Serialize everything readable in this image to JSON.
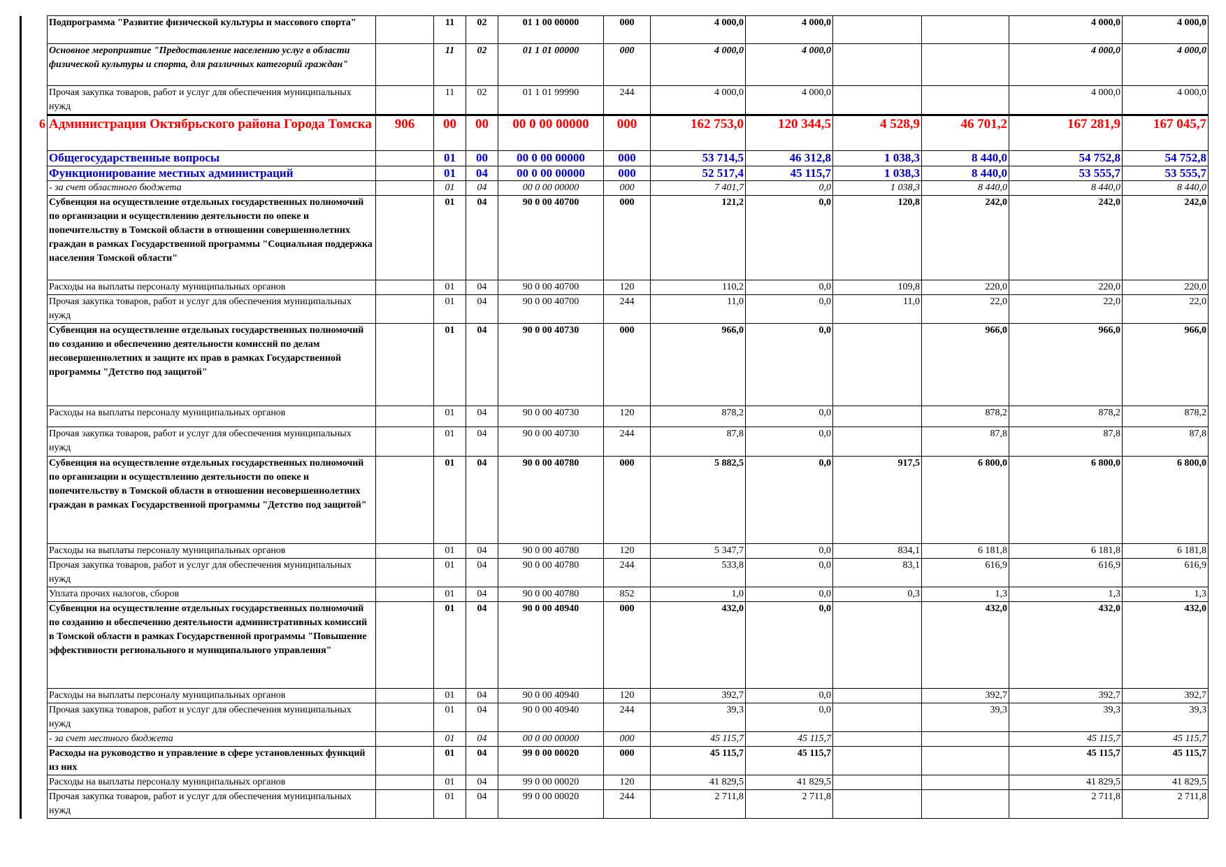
{
  "rows": [
    {
      "num": "",
      "name": "Подпрограмма \"Развитие физической культуры и массового спорта\"",
      "grbs": "",
      "rz": "11",
      "pr": "02",
      "csr": "01 1 00 00000",
      "vr": "000",
      "v1": "4 000,0",
      "v2": "4 000,0",
      "v3": "",
      "v4": "",
      "v5": "4 000,0",
      "v6": "4 000,0"
    },
    {
      "num": "",
      "name": "Основное мероприятие \"Предоставление населению услуг в области физической культуры и спорта, для различных категорий граждан\"",
      "grbs": "",
      "rz": "11",
      "pr": "02",
      "csr": "01 1 01 00000",
      "vr": "000",
      "v1": "4 000,0",
      "v2": "4 000,0",
      "v3": "",
      "v4": "",
      "v5": "4 000,0",
      "v6": "4 000,0"
    },
    {
      "num": "",
      "name": "Прочая закупка товаров, работ и услуг для обеспечения муниципальных нужд",
      "grbs": "",
      "rz": "11",
      "pr": "02",
      "csr": "01 1 01 99990",
      "vr": "244",
      "v1": "4 000,0",
      "v2": "4 000,0",
      "v3": "",
      "v4": "",
      "v5": "4 000,0",
      "v6": "4 000,0"
    },
    {
      "num": "6",
      "name": "Администрация Октябрьского района Города Томска",
      "grbs": "906",
      "rz": "00",
      "pr": "00",
      "csr": "00 0 00 00000",
      "vr": "000",
      "v1": "162 753,0",
      "v2": "120 344,5",
      "v3": "4 528,9",
      "v4": "46 701,2",
      "v5": "167 281,9",
      "v6": "167 045,7"
    },
    {
      "num": "",
      "name": "Общегосударственные вопросы",
      "grbs": "",
      "rz": "01",
      "pr": "00",
      "csr": "00 0 00 00000",
      "vr": "000",
      "v1": "53 714,5",
      "v2": "46 312,8",
      "v3": "1 038,3",
      "v4": "8 440,0",
      "v5": "54 752,8",
      "v6": "54 752,8"
    },
    {
      "num": "",
      "name": "Функционирование местных администраций",
      "grbs": "",
      "rz": "01",
      "pr": "04",
      "csr": "00 0 00 00000",
      "vr": "000",
      "v1": "52 517,4",
      "v2": "45 115,7",
      "v3": "1 038,3",
      "v4": "8 440,0",
      "v5": "53 555,7",
      "v6": "53 555,7"
    },
    {
      "num": "",
      "name": " - за счет областного бюджета",
      "grbs": "",
      "rz": "01",
      "pr": "04",
      "csr": "00 0 00 00000",
      "vr": "000",
      "v1": "7 401,7",
      "v2": "0,0",
      "v3": "1 038,3",
      "v4": "8 440,0",
      "v5": "8 440,0",
      "v6": "8 440,0"
    },
    {
      "num": "",
      "name": "Субвенция на осуществление отдельных государственных полномочий по организации и осуществлению деятельности по опеке и попечительству в Томской области в отношении совершеннолетних граждан в рамках Государственной программы \"Социальная поддержка населения Томской области\"",
      "grbs": "",
      "rz": "01",
      "pr": "04",
      "csr": "90 0 00 40700",
      "vr": "000",
      "v1": "121,2",
      "v2": "0,0",
      "v3": "120,8",
      "v4": "242,0",
      "v5": "242,0",
      "v6": "242,0"
    },
    {
      "num": "",
      "name": "Расходы на выплаты персоналу муниципальных органов",
      "grbs": "",
      "rz": "01",
      "pr": "04",
      "csr": "90 0 00 40700",
      "vr": "120",
      "v1": "110,2",
      "v2": "0,0",
      "v3": "109,8",
      "v4": "220,0",
      "v5": "220,0",
      "v6": "220,0"
    },
    {
      "num": "",
      "name": "Прочая закупка товаров, работ и услуг для обеспечения муниципальных нужд",
      "grbs": "",
      "rz": "01",
      "pr": "04",
      "csr": "90 0 00 40700",
      "vr": "244",
      "v1": "11,0",
      "v2": "0,0",
      "v3": "11,0",
      "v4": "22,0",
      "v5": "22,0",
      "v6": "22,0"
    },
    {
      "num": "",
      "name": "Субвенция на осуществление отдельных государственных полномочий по созданию и обеспечению деятельности комиссий по делам несовершеннолетних и защите их прав в рамках Государственной программы \"Детство под защитой\"",
      "grbs": "",
      "rz": "01",
      "pr": "04",
      "csr": "90 0 00 40730",
      "vr": "000",
      "v1": "966,0",
      "v2": "0,0",
      "v3": "",
      "v4": "966,0",
      "v5": "966,0",
      "v6": "966,0"
    },
    {
      "num": "",
      "name": "Расходы на выплаты персоналу муниципальных органов",
      "grbs": "",
      "rz": "01",
      "pr": "04",
      "csr": "90 0 00 40730",
      "vr": "120",
      "v1": "878,2",
      "v2": "0,0",
      "v3": "",
      "v4": "878,2",
      "v5": "878,2",
      "v6": "878,2"
    },
    {
      "num": "",
      "name": "Прочая закупка товаров, работ и услуг для обеспечения муниципальных нужд",
      "grbs": "",
      "rz": "01",
      "pr": "04",
      "csr": "90 0 00 40730",
      "vr": "244",
      "v1": "87,8",
      "v2": "0,0",
      "v3": "",
      "v4": "87,8",
      "v5": "87,8",
      "v6": "87,8"
    },
    {
      "num": "",
      "name": "Субвенция на осуществление отдельных государственных полномочий по организации и осуществлению деятельности по опеке и попечительству в Томской области в отношении несовершеннолетних граждан в рамках Государственной программы \"Детство под защитой\"",
      "grbs": "",
      "rz": "01",
      "pr": "04",
      "csr": "90 0 00 40780",
      "vr": "000",
      "v1": "5 882,5",
      "v2": "0,0",
      "v3": "917,5",
      "v4": "6 800,0",
      "v5": "6 800,0",
      "v6": "6 800,0"
    },
    {
      "num": "",
      "name": "Расходы на выплаты персоналу муниципальных органов",
      "grbs": "",
      "rz": "01",
      "pr": "04",
      "csr": "90 0 00 40780",
      "vr": "120",
      "v1": "5 347,7",
      "v2": "0,0",
      "v3": "834,1",
      "v4": "6 181,8",
      "v5": "6 181,8",
      "v6": "6 181,8"
    },
    {
      "num": "",
      "name": "Прочая закупка товаров, работ и услуг для обеспечения муниципальных нужд",
      "grbs": "",
      "rz": "01",
      "pr": "04",
      "csr": "90 0 00 40780",
      "vr": "244",
      "v1": "533,8",
      "v2": "0,0",
      "v3": "83,1",
      "v4": "616,9",
      "v5": "616,9",
      "v6": "616,9"
    },
    {
      "num": "",
      "name": "Уплата прочих налогов, сборов",
      "grbs": "",
      "rz": "01",
      "pr": "04",
      "csr": "90 0 00 40780",
      "vr": "852",
      "v1": "1,0",
      "v2": "0,0",
      "v3": "0,3",
      "v4": "1,3",
      "v5": "1,3",
      "v6": "1,3"
    },
    {
      "num": "",
      "name": "Субвенция на осуществление отдельных государственных полномочий по созданию и обеспечению деятельности административных комиссий в Томской области в рамках Государственной программы \"Повышение эффективности регионального и муниципального управления\"",
      "grbs": "",
      "rz": "01",
      "pr": "04",
      "csr": "90 0 00 40940",
      "vr": "000",
      "v1": "432,0",
      "v2": "0,0",
      "v3": "",
      "v4": "432,0",
      "v5": "432,0",
      "v6": "432,0"
    },
    {
      "num": "",
      "name": "Расходы на выплаты персоналу муниципальных органов",
      "grbs": "",
      "rz": "01",
      "pr": "04",
      "csr": "90 0 00 40940",
      "vr": "120",
      "v1": "392,7",
      "v2": "0,0",
      "v3": "",
      "v4": "392,7",
      "v5": "392,7",
      "v6": "392,7"
    },
    {
      "num": "",
      "name": "Прочая закупка товаров, работ и услуг для обеспечения муниципальных нужд",
      "grbs": "",
      "rz": "01",
      "pr": "04",
      "csr": "90 0 00 40940",
      "vr": "244",
      "v1": "39,3",
      "v2": "0,0",
      "v3": "",
      "v4": "39,3",
      "v5": "39,3",
      "v6": "39,3"
    },
    {
      "num": "",
      "name": " - за счет местного бюджета",
      "grbs": "",
      "rz": "01",
      "pr": "04",
      "csr": "00 0 00 00000",
      "vr": "000",
      "v1": "45 115,7",
      "v2": "45 115,7",
      "v3": "",
      "v4": "",
      "v5": "45 115,7",
      "v6": "45 115,7"
    },
    {
      "num": "",
      "name": "Расходы на руководство и управление в сфере установленных функций из них",
      "grbs": "",
      "rz": "01",
      "pr": "04",
      "csr": "99 0 00 00020",
      "vr": "000",
      "v1": "45 115,7",
      "v2": "45 115,7",
      "v3": "",
      "v4": "",
      "v5": "45 115,7",
      "v6": "45 115,7"
    },
    {
      "num": "",
      "name": "Расходы на выплаты персоналу муниципальных органов",
      "grbs": "",
      "rz": "01",
      "pr": "04",
      "csr": "99 0 00 00020",
      "vr": "120",
      "v1": "41 829,5",
      "v2": "41 829,5",
      "v3": "",
      "v4": "",
      "v5": "41 829,5",
      "v6": "41 829,5"
    },
    {
      "num": "",
      "name": "Прочая закупка товаров, работ и услуг для обеспечения муниципальных нужд",
      "grbs": "",
      "rz": "01",
      "pr": "04",
      "csr": "99 0 00 00020",
      "vr": "244",
      "v1": "2 711,8",
      "v2": "2 711,8",
      "v3": "",
      "v4": "",
      "v5": "2 711,8",
      "v6": "2 711,8"
    }
  ]
}
